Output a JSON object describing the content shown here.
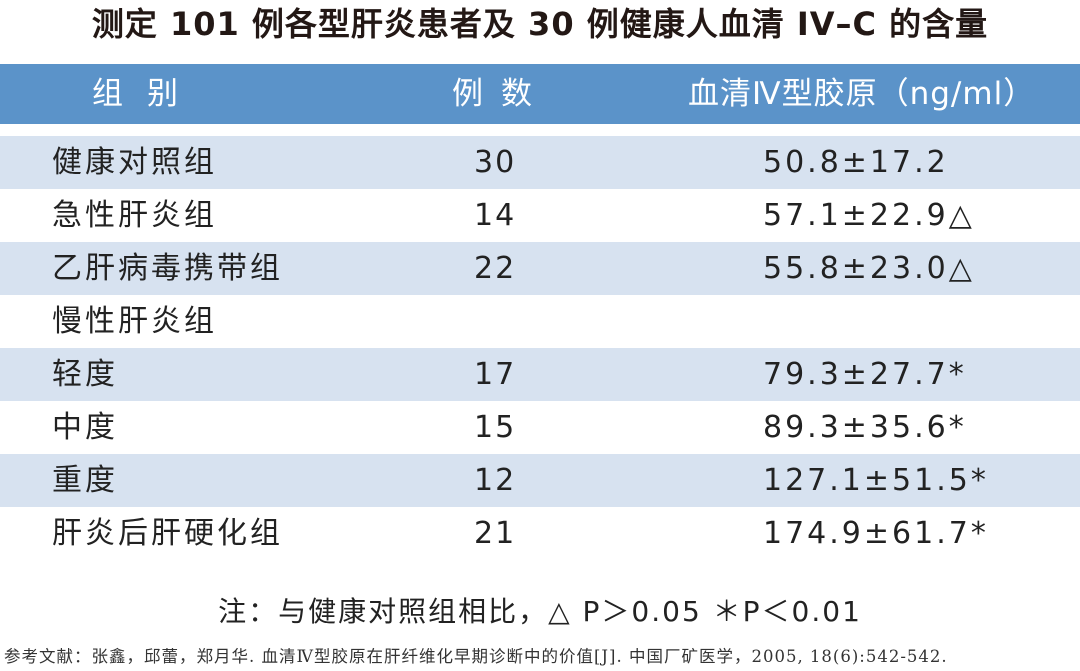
{
  "title": "测定 101 例各型肝炎患者及 30 例健康人血清 IV–C 的含量",
  "table": {
    "headers": {
      "group": "组别",
      "count": "例数",
      "value": "血清Ⅳ型胶原（ng/ml）"
    },
    "rows": [
      {
        "group": "健康对照组",
        "count": "30",
        "value": "50.8±17.2"
      },
      {
        "group": "急性肝炎组",
        "count": "14",
        "value": "57.1±22.9△"
      },
      {
        "group": "乙肝病毒携带组",
        "count": "22",
        "value": "55.8±23.0△"
      },
      {
        "group": "慢性肝炎组",
        "count": "",
        "value": ""
      },
      {
        "group": "轻度",
        "count": "17",
        "value": "79.3±27.7*"
      },
      {
        "group": "中度",
        "count": "15",
        "value": "89.3±35.6*"
      },
      {
        "group": "重度",
        "count": "12",
        "value": "127.1±51.5*"
      },
      {
        "group": "肝炎后肝硬化组",
        "count": "21",
        "value": "174.9±61.7*"
      }
    ]
  },
  "note": "注：与健康对照组相比，△ P＞0.05 ＊P＜0.01",
  "reference": "参考文献：张鑫，邱蕾，郑月华. 血清Ⅳ型胶原在肝纤维化早期诊断中的价值[J]. 中国厂矿医学，2005, 18(6):542-542.",
  "colors": {
    "header_bg": "#5b93c9",
    "row_alt_bg": "#d7e2f0"
  }
}
